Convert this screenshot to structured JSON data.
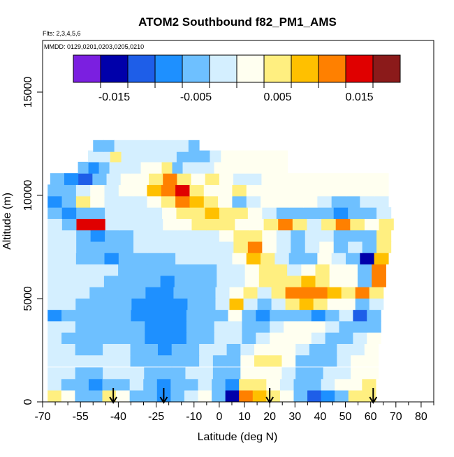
{
  "chart_data": {
    "type": "heatmap",
    "title": "ATOM2 Southbound f82_PM1_AMS",
    "subtitle_flights": "Flts: 2,3,4,5,6",
    "subtitle_dates": "MMDD: 0129,0201,0203,0205,0210",
    "xlabel": "Latitude (deg N)",
    "ylabel": "Altitude (m)",
    "xlim": [
      -70,
      85
    ],
    "ylim": [
      0,
      17500
    ],
    "x_ticks": [
      -70,
      -55,
      -40,
      -25,
      -10,
      0,
      10,
      20,
      30,
      40,
      50,
      60,
      70,
      80
    ],
    "x_tick_labels": [
      "-70",
      "-55",
      "-40",
      "-25",
      "-10",
      "0",
      "10",
      "20",
      "30",
      "40",
      "50",
      "60",
      "70",
      "80"
    ],
    "x_minor_ticks": [
      -65,
      -60,
      -50,
      -45,
      -35,
      -30,
      -20,
      -15,
      -5,
      5,
      15,
      25,
      35,
      45,
      55,
      65,
      75,
      85
    ],
    "y_ticks": [
      0,
      5000,
      10000,
      15000
    ],
    "y_tick_labels": [
      "0",
      "5000",
      "10000",
      "15000"
    ],
    "colorbar": {
      "min": -0.02,
      "max": 0.02,
      "tick_values": [
        -0.015,
        -0.005,
        0.005,
        0.015
      ],
      "tick_labels": [
        "-0.015",
        "-0.005",
        "0.005",
        "0.015"
      ],
      "colors": [
        "#7b1fe0",
        "#0000aa",
        "#1e5ee8",
        "#1e90ff",
        "#6ec0ff",
        "#d4efff",
        "#fffff0",
        "#ffef80",
        "#ffc000",
        "#ff8000",
        "#e00000",
        "#8b1a1a"
      ]
    },
    "arrow_latitudes": [
      -42,
      -22,
      20,
      61
    ],
    "rows": [
      {
        "alt": 300,
        "lat_min": -68,
        "lat_max": 62,
        "values": [
          0.004,
          0.0,
          -0.004,
          -0.006,
          0.004,
          0.002,
          -0.004,
          -0.006,
          -0.008,
          -0.004,
          -0.002,
          0.002,
          -0.006,
          -0.016,
          0.012,
          0.009,
          0.006,
          0.0,
          -0.006,
          -0.012,
          -0.008,
          -0.004,
          0.004,
          0.006
        ]
      },
      {
        "alt": 850,
        "lat_min": -68,
        "lat_max": 62,
        "values": [
          -0.002,
          -0.004,
          -0.006,
          -0.008,
          -0.006,
          -0.004,
          -0.002,
          -0.006,
          -0.008,
          -0.006,
          -0.004,
          -0.002,
          -0.004,
          -0.008,
          0.004,
          0.004,
          0.002,
          -0.002,
          -0.004,
          -0.004,
          -0.002,
          0.0,
          0.002,
          0.004
        ]
      },
      {
        "alt": 1400,
        "lat_min": -68,
        "lat_max": 63,
        "values": [
          -0.002,
          -0.003,
          -0.004,
          -0.004,
          -0.003,
          -0.002,
          -0.003,
          -0.004,
          -0.005,
          -0.004,
          -0.003,
          -0.003,
          -0.004,
          -0.006,
          0.0,
          0.002,
          0.001,
          -0.002,
          -0.004,
          -0.004,
          -0.003,
          -0.002,
          0.0,
          0.002
        ]
      },
      {
        "alt": 2000,
        "lat_min": -68,
        "lat_max": 63,
        "values": [
          -0.002,
          -0.002,
          -0.003,
          -0.003,
          -0.002,
          -0.002,
          -0.004,
          -0.005,
          -0.006,
          -0.005,
          -0.004,
          -0.003,
          -0.004,
          -0.004,
          0.002,
          0.004,
          0.004,
          0.0,
          -0.004,
          -0.006,
          -0.004,
          -0.002,
          0.0,
          0.002
        ]
      },
      {
        "alt": 2550,
        "lat_min": -68,
        "lat_max": 63,
        "values": [
          -0.002,
          -0.003,
          -0.004,
          -0.004,
          -0.003,
          -0.003,
          -0.004,
          -0.006,
          -0.007,
          -0.006,
          -0.004,
          -0.003,
          -0.003,
          -0.004,
          -0.002,
          0.002,
          0.003,
          0.001,
          -0.002,
          -0.004,
          -0.004,
          -0.002,
          -0.001,
          0.002
        ]
      },
      {
        "alt": 3100,
        "lat_min": -68,
        "lat_max": 64,
        "values": [
          -0.003,
          -0.004,
          -0.005,
          -0.005,
          -0.004,
          -0.004,
          -0.005,
          -0.007,
          -0.008,
          -0.007,
          -0.005,
          -0.004,
          -0.003,
          -0.003,
          -0.004,
          -0.002,
          0.0,
          0.002,
          0.0,
          -0.002,
          -0.004,
          -0.004,
          -0.002,
          0.0
        ]
      },
      {
        "alt": 3650,
        "lat_min": -68,
        "lat_max": 64,
        "values": [
          -0.002,
          -0.003,
          -0.004,
          -0.005,
          -0.004,
          -0.004,
          -0.006,
          -0.008,
          -0.009,
          -0.008,
          -0.006,
          -0.004,
          -0.003,
          -0.002,
          -0.005,
          -0.004,
          -0.002,
          0.0,
          0.002,
          0.002,
          -0.002,
          -0.004,
          -0.006,
          -0.004
        ]
      },
      {
        "alt": 4200,
        "lat_min": -68,
        "lat_max": 64,
        "values": [
          -0.008,
          -0.006,
          -0.005,
          -0.005,
          -0.004,
          -0.005,
          -0.007,
          -0.008,
          -0.009,
          -0.008,
          -0.006,
          -0.005,
          -0.004,
          0.002,
          -0.006,
          -0.008,
          -0.006,
          -0.004,
          -0.006,
          -0.008,
          -0.004,
          -0.002,
          -0.012,
          -0.006
        ]
      },
      {
        "alt": 4750,
        "lat_min": -68,
        "lat_max": 65,
        "values": [
          -0.003,
          -0.003,
          -0.004,
          -0.004,
          -0.004,
          -0.005,
          -0.007,
          -0.008,
          -0.008,
          -0.007,
          -0.006,
          -0.004,
          -0.003,
          0.008,
          -0.002,
          -0.004,
          -0.002,
          0.004,
          0.008,
          0.006,
          0.002,
          0.0,
          -0.006,
          -0.002
        ]
      },
      {
        "alt": 5300,
        "lat_min": -68,
        "lat_max": 65,
        "values": [
          -0.002,
          -0.003,
          -0.003,
          -0.004,
          -0.004,
          -0.004,
          -0.006,
          -0.007,
          -0.008,
          -0.006,
          -0.005,
          -0.004,
          -0.003,
          0.003,
          0.006,
          -0.002,
          0.004,
          0.012,
          0.012,
          0.01,
          0.008,
          0.004,
          0.01,
          0.004
        ]
      },
      {
        "alt": 5850,
        "lat_min": -68,
        "lat_max": 66,
        "values": [
          -0.002,
          -0.002,
          -0.003,
          -0.003,
          -0.004,
          -0.004,
          -0.005,
          -0.006,
          -0.007,
          -0.006,
          -0.005,
          -0.004,
          -0.003,
          -0.002,
          0.002,
          0.004,
          0.006,
          0.004,
          0.008,
          0.006,
          0.003,
          0.0,
          -0.004,
          0.012
        ]
      },
      {
        "alt": 6400,
        "lat_min": -68,
        "lat_max": 66,
        "values": [
          -0.002,
          -0.002,
          -0.003,
          -0.003,
          -0.003,
          -0.004,
          -0.005,
          -0.006,
          -0.006,
          -0.005,
          -0.005,
          -0.004,
          -0.003,
          -0.002,
          0.002,
          0.006,
          0.004,
          -0.002,
          0.002,
          0.004,
          0.003,
          0.0,
          -0.006,
          0.01
        ]
      },
      {
        "alt": 6950,
        "lat_min": -68,
        "lat_max": 67,
        "values": [
          -0.002,
          -0.002,
          -0.004,
          -0.006,
          -0.008,
          -0.006,
          -0.004,
          -0.004,
          -0.004,
          -0.003,
          -0.003,
          -0.002,
          -0.002,
          0.002,
          0.008,
          0.004,
          -0.002,
          -0.004,
          -0.004,
          0.002,
          -0.002,
          -0.004,
          -0.014,
          0.008
        ]
      },
      {
        "alt": 7500,
        "lat_min": -68,
        "lat_max": 68,
        "values": [
          -0.002,
          -0.002,
          -0.004,
          -0.006,
          -0.006,
          -0.004,
          -0.003,
          -0.003,
          -0.003,
          -0.003,
          -0.002,
          -0.002,
          -0.001,
          0.004,
          0.01,
          0.002,
          -0.002,
          -0.004,
          -0.002,
          0.0,
          -0.004,
          -0.002,
          -0.004,
          0.004
        ]
      },
      {
        "alt": 8050,
        "lat_min": -68,
        "lat_max": 68,
        "values": [
          -0.002,
          -0.003,
          -0.006,
          -0.008,
          -0.006,
          -0.004,
          -0.003,
          -0.003,
          -0.002,
          -0.002,
          -0.002,
          -0.001,
          0.0,
          0.004,
          0.004,
          0.0,
          -0.002,
          -0.004,
          -0.003,
          -0.002,
          -0.004,
          -0.006,
          -0.004,
          0.004
        ]
      },
      {
        "alt": 8600,
        "lat_min": -68,
        "lat_max": 69,
        "values": [
          -0.002,
          -0.004,
          0.016,
          0.014,
          -0.002,
          -0.003,
          -0.002,
          -0.001,
          0.0,
          0.002,
          0.004,
          0.006,
          0.004,
          0.002,
          0.0,
          0.006,
          0.01,
          0.004,
          -0.002,
          0.004,
          0.012,
          0.004,
          0.002,
          0.006
        ]
      },
      {
        "alt": 9150,
        "lat_min": -68,
        "lat_max": 68,
        "values": [
          -0.004,
          -0.008,
          -0.006,
          -0.004,
          -0.003,
          -0.002,
          -0.002,
          -0.001,
          0.002,
          0.004,
          0.006,
          0.008,
          0.006,
          0.004,
          0.002,
          -0.002,
          -0.004,
          -0.006,
          -0.004,
          -0.006,
          -0.008,
          -0.006,
          -0.004,
          -0.002
        ]
      },
      {
        "alt": 9700,
        "lat_min": -68,
        "lat_max": 67,
        "values": [
          -0.01,
          -0.006,
          0.004,
          0.002,
          -0.002,
          -0.002,
          -0.001,
          0.002,
          0.006,
          0.01,
          0.008,
          0.004,
          0.002,
          -0.004,
          -0.002,
          0.0,
          0.002,
          0.002,
          0.001,
          -0.002,
          -0.004,
          -0.004,
          -0.002,
          -0.001
        ]
      },
      {
        "alt": 10250,
        "lat_min": -68,
        "lat_max": 67,
        "values": [
          -0.004,
          -0.004,
          -0.002,
          0.0,
          -0.002,
          0.0,
          0.002,
          0.008,
          0.012,
          0.014,
          0.006,
          0.002,
          0.0,
          0.006,
          0.003,
          0.001,
          0.0,
          0.0,
          0.0,
          0.001,
          0.002,
          0.002,
          0.001,
          0.0
        ]
      },
      {
        "alt": 10800,
        "lat_min": -67,
        "lat_max": 67,
        "values": [
          -0.004,
          -0.008,
          -0.012,
          -0.006,
          -0.003,
          0.0,
          0.002,
          0.006,
          0.01,
          0.004,
          0.002,
          0.004,
          0.0,
          -0.002,
          -0.001,
          0.0,
          0.001,
          0.001,
          0.002,
          0.002,
          0.001,
          0.001,
          0.002,
          0.001
        ]
      },
      {
        "alt": 11350,
        "lat_min": -56,
        "lat_max": 27,
        "values": [
          -0.006,
          -0.01,
          -0.004,
          -0.002,
          -0.002,
          -0.003,
          0.002,
          0.003,
          0.004,
          -0.004,
          -0.003,
          -0.002,
          -0.001,
          0.0,
          0.002,
          0.003,
          0.002,
          0.001,
          0.001,
          0.001
        ]
      },
      {
        "alt": 11900,
        "lat_min": -52,
        "lat_max": 27,
        "values": [
          -0.002,
          -0.003,
          0.004,
          -0.002,
          -0.003,
          -0.002,
          -0.001,
          -0.002,
          -0.004,
          -0.006,
          -0.004,
          -0.002,
          0.002,
          0.003,
          0.002,
          0.001,
          0.001,
          0.001
        ]
      },
      {
        "alt": 12400,
        "lat_min": -50,
        "lat_max": -8,
        "values": [
          -0.006,
          -0.004,
          -0.003,
          -0.002,
          -0.003,
          -0.002,
          -0.002,
          -0.001,
          -0.002,
          -0.004
        ]
      }
    ]
  }
}
